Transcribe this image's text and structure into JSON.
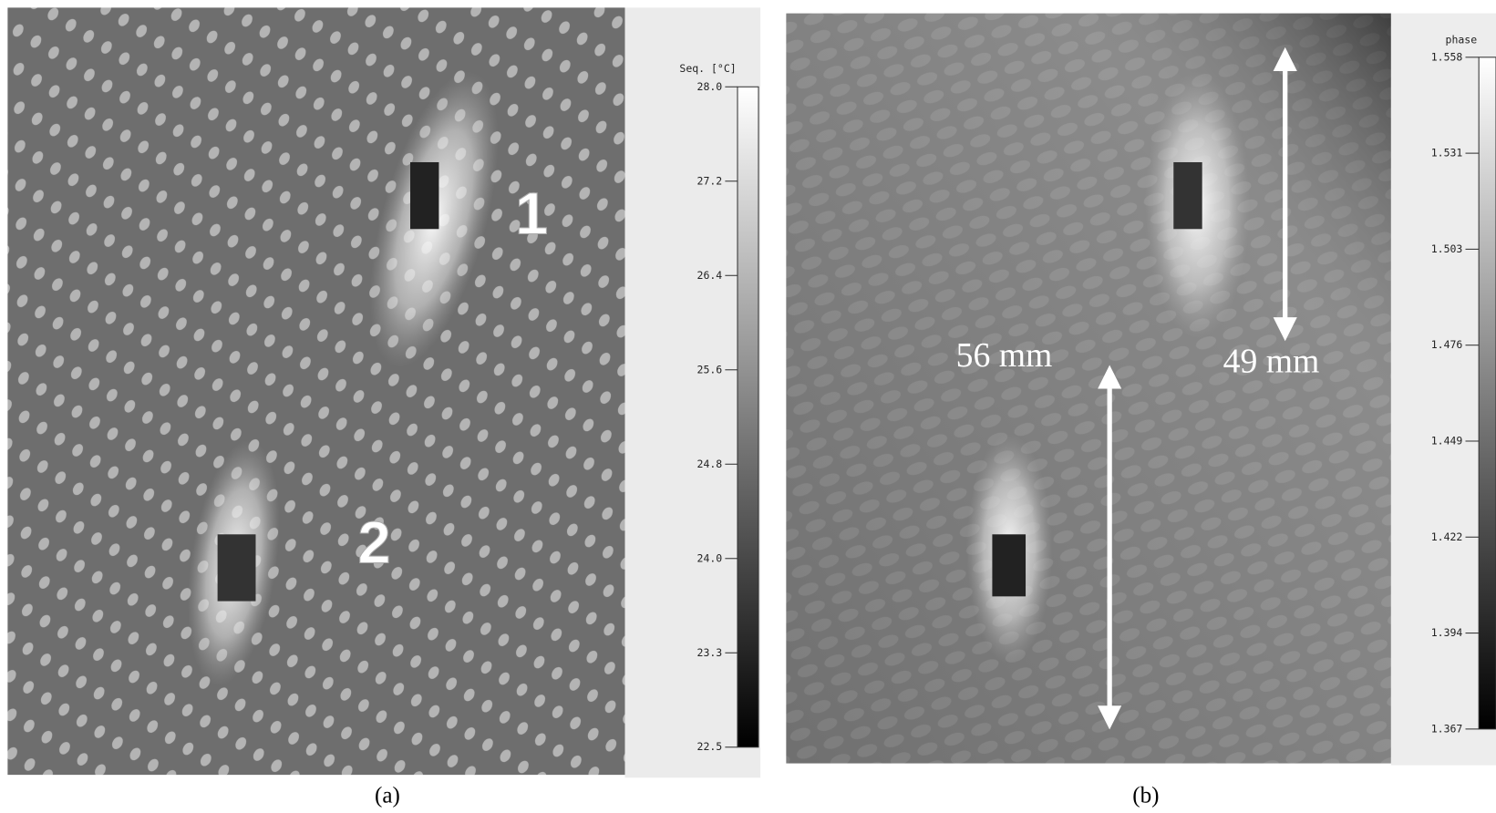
{
  "panels": [
    {
      "label": "(a)",
      "annotations": [
        "1",
        "2"
      ],
      "colorbar": {
        "title": "Seq. [°C]",
        "ticks": [
          "28.0",
          "27.2",
          "26.4",
          "25.6",
          "24.8",
          "24.0",
          "23.3",
          "22.5"
        ]
      }
    },
    {
      "label": "(b)",
      "annotations": [
        "56 mm",
        "49 mm"
      ],
      "colorbar": {
        "title": "phase",
        "ticks": [
          "1.558",
          "1.531",
          "1.503",
          "1.476",
          "1.449",
          "1.422",
          "1.394",
          "1.367"
        ]
      }
    }
  ]
}
